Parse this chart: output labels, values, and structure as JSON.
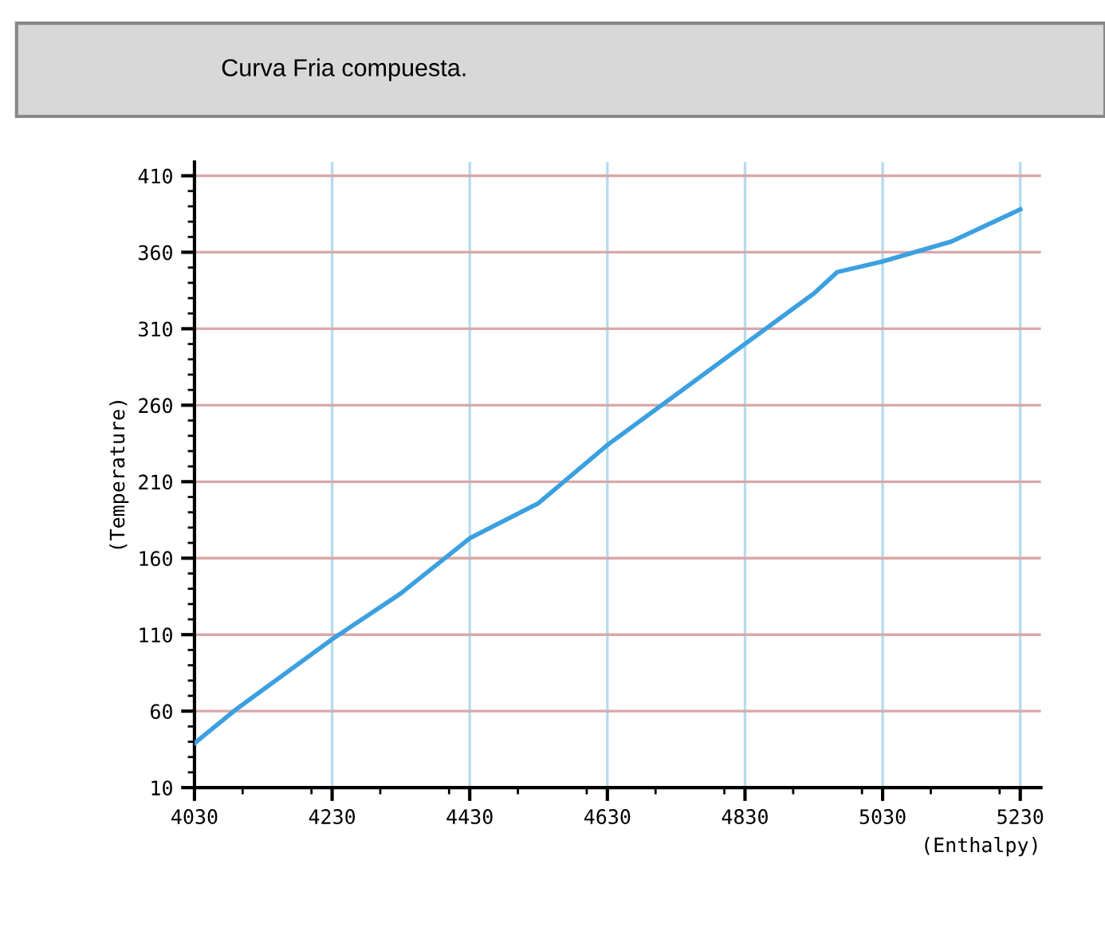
{
  "chart_data": {
    "type": "line",
    "title": "Curva Fria compuesta.",
    "xlabel": "(Enthalpy)",
    "ylabel": "(Temperature)",
    "x": [
      4030,
      4090,
      4230,
      4330,
      4430,
      4530,
      4630,
      4730,
      4830,
      4930,
      4964,
      5030,
      5130,
      5230
    ],
    "series": [
      {
        "color": "#3ca0e0",
        "values": [
          39,
          61,
          107,
          137,
          173,
          196,
          234,
          267,
          300,
          333,
          347,
          354,
          367,
          388
        ]
      }
    ],
    "xlim": [
      4030,
      5260
    ],
    "ylim": [
      10,
      419
    ],
    "xticks": [
      4030,
      4230,
      4430,
      4630,
      4830,
      5030,
      5230
    ],
    "yticks": [
      10,
      60,
      110,
      160,
      210,
      260,
      310,
      360,
      410
    ],
    "grid": true,
    "marker": "none",
    "line_style": "solid",
    "legend": false
  }
}
